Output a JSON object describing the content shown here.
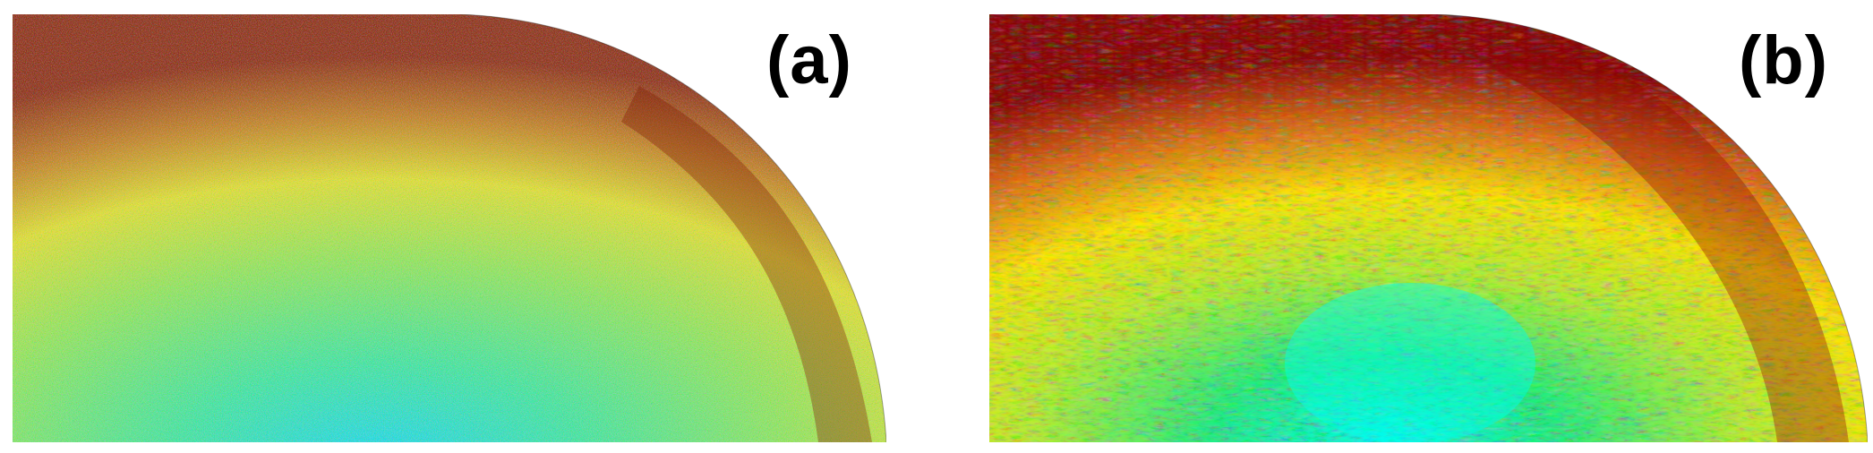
{
  "panels": [
    {
      "id": "a",
      "label": "(a)",
      "colormap": [
        "#00e8ff",
        "#22ff88",
        "#ffff00",
        "#ffb000",
        "#c01000",
        "#6a0000"
      ],
      "background": "#8cf25a"
    },
    {
      "id": "b",
      "label": "(b)",
      "colormap": [
        "#00ffee",
        "#2cff60",
        "#ffff00",
        "#ff9900",
        "#b00000",
        "#700000"
      ],
      "background": "#a8f040"
    }
  ]
}
